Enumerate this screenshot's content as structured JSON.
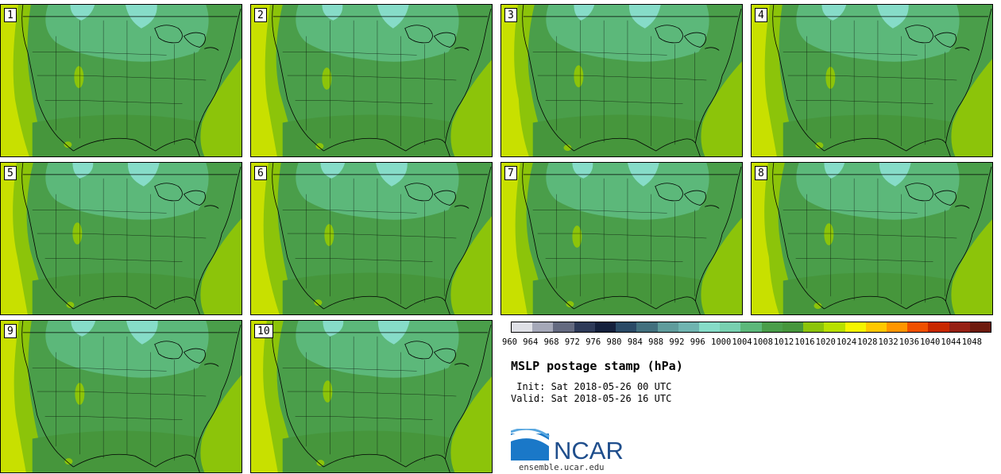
{
  "members": [
    "1",
    "2",
    "3",
    "4",
    "5",
    "6",
    "7",
    "8",
    "9",
    "10"
  ],
  "colorbar": {
    "colors": [
      "#dfe0e6",
      "#a5a8b8",
      "#646a80",
      "#2e3a58",
      "#14203c",
      "#2a4a66",
      "#42707e",
      "#5f9c9c",
      "#6fb4b0",
      "#86dcc8",
      "#78d0b0",
      "#5cb87a",
      "#4a9e4a",
      "#46963c",
      "#8cc40a",
      "#b8e000",
      "#f5f500",
      "#ffc800",
      "#ff9600",
      "#f05000",
      "#c82800",
      "#962014",
      "#6e1a0e"
    ],
    "labels": [
      "960",
      "964",
      "968",
      "972",
      "976",
      "980",
      "984",
      "988",
      "992",
      "996",
      "1000",
      "1004",
      "1008",
      "1012",
      "1016",
      "1020",
      "1024",
      "1028",
      "1032",
      "1036",
      "1040",
      "1044",
      "1048"
    ]
  },
  "title": "MSLP postage stamp (hPa)",
  "init": " Init: Sat 2018-05-26 00 UTC",
  "valid": "Valid: Sat 2018-05-26 16 UTC",
  "logo_text": "NCAR",
  "site": "ensemble.ucar.edu",
  "field_colors": {
    "pacific_far": "#c8e000",
    "pacific_near": "#8cc40a",
    "land_main": "#4a9e4a",
    "land_dark": "#46963c",
    "north_light": "#5cb87a",
    "north_lightest": "#86dcc8",
    "atlantic": "#8cc40a",
    "plateau": "#8cc40a"
  }
}
